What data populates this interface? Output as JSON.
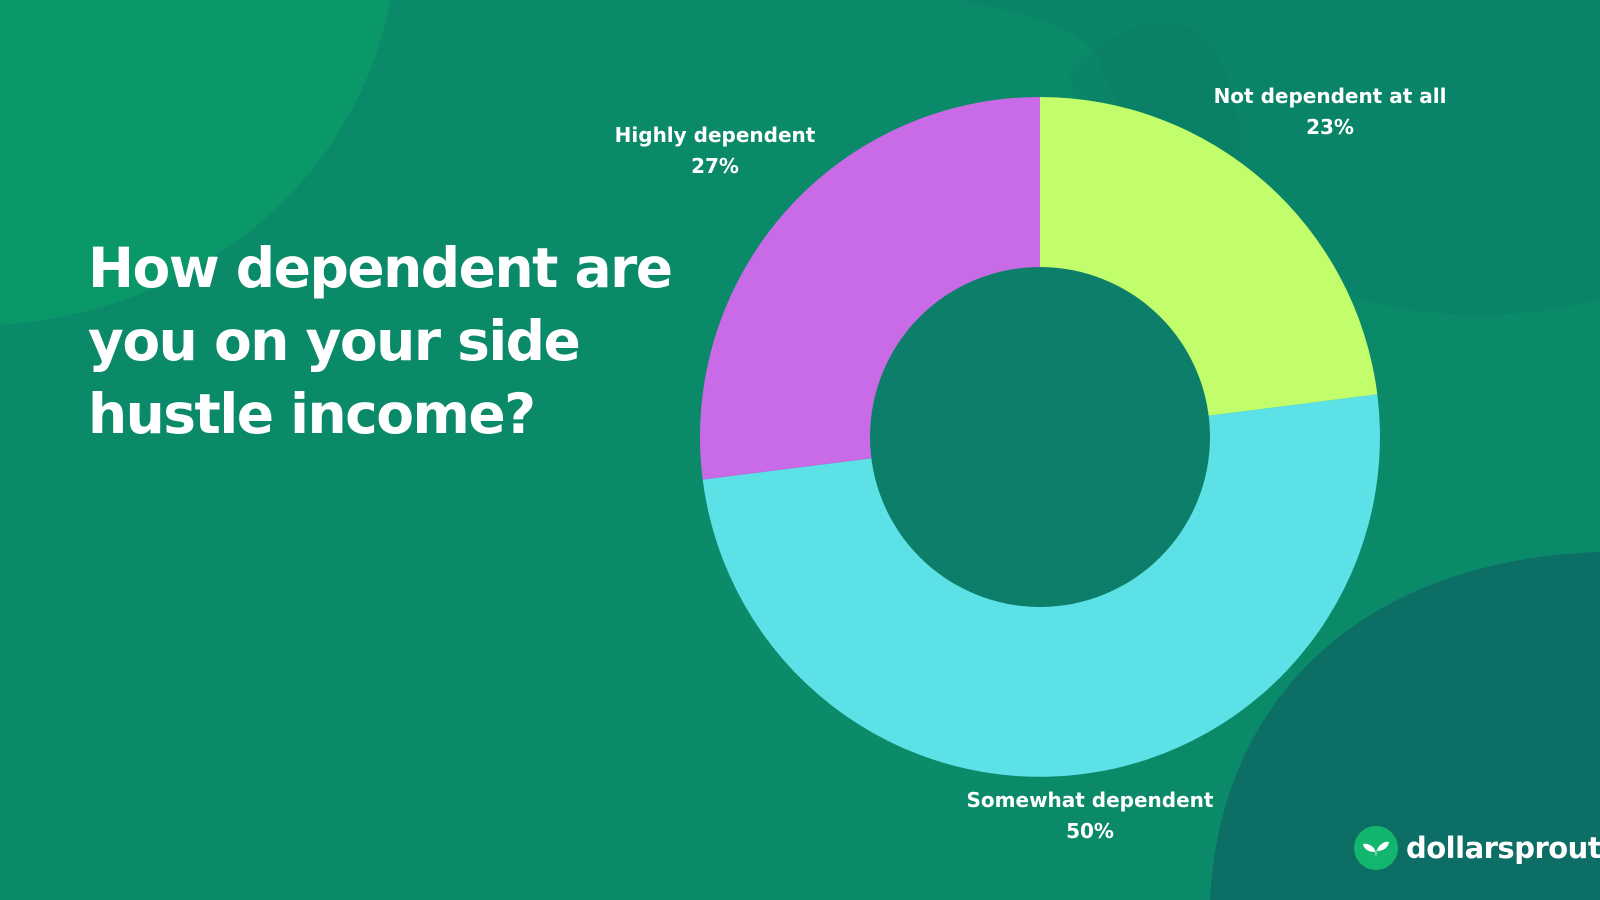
{
  "colors": {
    "background": "#0a8a68",
    "donut_hole": "#0c7e6a"
  },
  "chart_data": {
    "type": "pie",
    "title": "How dependent are you on your side hustle income?",
    "donut": true,
    "slices": [
      {
        "label": "Not dependent at all",
        "value": 23,
        "value_label": "23%",
        "color": "#c2fd6c"
      },
      {
        "label": "Somewhat dependent",
        "value": 50,
        "value_label": "50%",
        "color": "#5ce1e6"
      },
      {
        "label": "Highly dependent",
        "value": 27,
        "value_label": "27%",
        "color": "#c96be6"
      }
    ]
  },
  "brand": {
    "name": "dollarsprout",
    "icon": "sprout-icon"
  }
}
